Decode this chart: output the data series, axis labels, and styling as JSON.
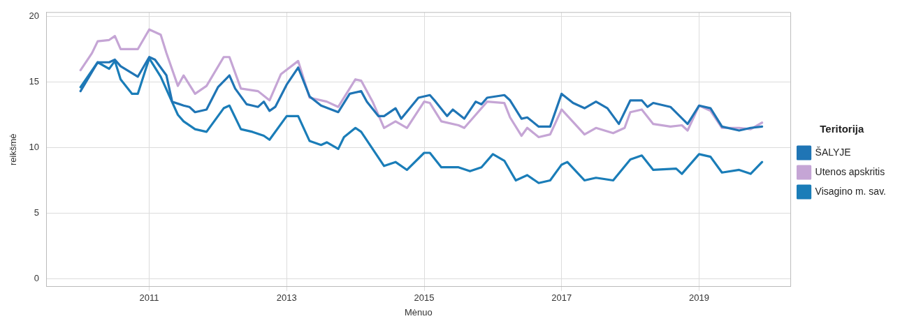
{
  "chart_data": {
    "type": "line",
    "xlabel": "Mėnuo",
    "ylabel": "reikšmė",
    "legend_title": "Teritorija",
    "legend": "right",
    "grid": true,
    "marker": "none",
    "line_style": "solid",
    "xlim": [
      "2009-07",
      "2020-05"
    ],
    "xticks": [
      "2011",
      "2013",
      "2015",
      "2017",
      "2019"
    ],
    "ylim": [
      -0.6,
      20.3
    ],
    "yticks": [
      0,
      5,
      10,
      15,
      20
    ],
    "series": [
      {
        "name": "ŠALYJE",
        "color": "#1f75b5",
        "x": [
          "2010-01",
          "2010-04",
          "2010-06",
          "2010-07",
          "2010-08",
          "2010-11",
          "2011-01",
          "2011-02",
          "2011-04",
          "2011-05",
          "2011-07",
          "2011-08",
          "2011-09",
          "2011-11",
          "2012-01",
          "2012-03",
          "2012-04",
          "2012-06",
          "2012-07",
          "2012-08",
          "2012-09",
          "2012-10",
          "2012-11",
          "2013-01",
          "2013-03",
          "2013-05",
          "2013-07",
          "2013-10",
          "2013-12",
          "2014-02",
          "2014-03",
          "2014-05",
          "2014-06",
          "2014-08",
          "2014-09",
          "2014-12",
          "2015-02",
          "2015-03",
          "2015-05",
          "2015-06",
          "2015-08",
          "2015-10",
          "2015-11",
          "2015-12",
          "2016-03",
          "2016-04",
          "2016-06",
          "2016-07",
          "2016-09",
          "2016-11",
          "2017-01",
          "2017-03",
          "2017-05",
          "2017-07",
          "2017-09",
          "2017-11",
          "2018-01",
          "2018-03",
          "2018-04",
          "2018-05",
          "2018-08",
          "2018-11",
          "2019-01",
          "2019-03",
          "2019-05",
          "2019-08",
          "2019-10",
          "2019-12"
        ],
        "values": [
          14.3,
          16.5,
          16.5,
          16.7,
          16.2,
          15.4,
          16.9,
          16.7,
          15.5,
          13.5,
          13.2,
          13.1,
          12.7,
          12.9,
          14.6,
          15.5,
          14.5,
          13.3,
          13.2,
          13.1,
          13.5,
          12.8,
          13.1,
          14.8,
          16.1,
          13.9,
          13.2,
          12.7,
          14.1,
          14.3,
          13.5,
          12.4,
          12.4,
          13.0,
          12.2,
          13.8,
          14.0,
          13.5,
          12.4,
          12.9,
          12.2,
          13.5,
          13.3,
          13.8,
          14.0,
          13.6,
          12.2,
          12.3,
          11.6,
          11.6,
          14.1,
          13.4,
          13.0,
          13.5,
          13.0,
          11.8,
          13.6,
          13.6,
          13.1,
          13.4,
          13.1,
          11.8,
          13.2,
          13.0,
          11.6,
          11.3,
          11.5,
          11.6
        ]
      },
      {
        "name": "Utenos apskritis",
        "color": "#c5a5d5",
        "x": [
          "2010-01",
          "2010-03",
          "2010-04",
          "2010-06",
          "2010-07",
          "2010-08",
          "2010-11",
          "2011-01",
          "2011-03",
          "2011-04",
          "2011-06",
          "2011-07",
          "2011-09",
          "2011-11",
          "2012-02",
          "2012-03",
          "2012-05",
          "2012-08",
          "2012-10",
          "2012-12",
          "2013-03",
          "2013-05",
          "2013-08",
          "2013-10",
          "2014-01",
          "2014-02",
          "2014-04",
          "2014-06",
          "2014-08",
          "2014-10",
          "2015-01",
          "2015-02",
          "2015-04",
          "2015-07",
          "2015-08",
          "2015-10",
          "2015-12",
          "2016-03",
          "2016-04",
          "2016-06",
          "2016-07",
          "2016-09",
          "2016-11",
          "2017-01",
          "2017-05",
          "2017-07",
          "2017-10",
          "2017-12",
          "2018-01",
          "2018-03",
          "2018-05",
          "2018-08",
          "2018-10",
          "2018-11",
          "2019-01",
          "2019-03",
          "2019-05",
          "2019-08",
          "2019-10",
          "2019-12"
        ],
        "values": [
          15.9,
          17.2,
          18.1,
          18.2,
          18.5,
          17.5,
          17.5,
          19.0,
          18.6,
          17.2,
          14.7,
          15.5,
          14.1,
          14.7,
          16.9,
          16.9,
          14.5,
          14.3,
          13.6,
          15.6,
          16.6,
          13.8,
          13.5,
          13.1,
          15.2,
          15.1,
          13.5,
          11.5,
          12.0,
          11.5,
          13.5,
          13.4,
          12.0,
          11.7,
          11.5,
          12.5,
          13.5,
          13.4,
          12.3,
          10.9,
          11.5,
          10.8,
          11.0,
          12.9,
          11.0,
          11.5,
          11.1,
          11.5,
          12.7,
          12.9,
          11.8,
          11.6,
          11.7,
          11.3,
          13.2,
          12.8,
          11.5,
          11.5,
          11.4,
          11.9
        ]
      },
      {
        "name": "Visagino m. sav.",
        "color": "#1a7db8",
        "x": [
          "2010-01",
          "2010-04",
          "2010-06",
          "2010-07",
          "2010-08",
          "2010-10",
          "2010-11",
          "2011-01",
          "2011-03",
          "2011-06",
          "2011-07",
          "2011-09",
          "2011-11",
          "2012-02",
          "2012-03",
          "2012-05",
          "2012-07",
          "2012-09",
          "2012-10",
          "2013-01",
          "2013-03",
          "2013-05",
          "2013-07",
          "2013-08",
          "2013-10",
          "2013-11",
          "2014-01",
          "2014-02",
          "2014-06",
          "2014-08",
          "2014-10",
          "2015-01",
          "2015-02",
          "2015-04",
          "2015-07",
          "2015-09",
          "2015-11",
          "2016-01",
          "2016-03",
          "2016-05",
          "2016-07",
          "2016-09",
          "2016-11",
          "2017-01",
          "2017-02",
          "2017-05",
          "2017-07",
          "2017-10",
          "2018-01",
          "2018-03",
          "2018-05",
          "2018-09",
          "2018-10",
          "2019-01",
          "2019-03",
          "2019-05",
          "2019-08",
          "2019-10",
          "2019-12"
        ],
        "values": [
          14.6,
          16.5,
          16.0,
          16.6,
          15.2,
          14.1,
          14.1,
          16.8,
          15.4,
          12.5,
          12.0,
          11.4,
          11.2,
          13.0,
          13.2,
          11.4,
          11.2,
          10.9,
          10.6,
          12.4,
          12.4,
          10.5,
          10.2,
          10.4,
          9.9,
          10.8,
          11.5,
          11.2,
          8.6,
          8.9,
          8.3,
          9.6,
          9.6,
          8.5,
          8.5,
          8.2,
          8.5,
          9.5,
          9.0,
          7.5,
          7.9,
          7.3,
          7.5,
          8.7,
          8.9,
          7.5,
          7.7,
          7.5,
          9.1,
          9.4,
          8.3,
          8.4,
          8.0,
          9.5,
          9.3,
          8.1,
          8.3,
          8.0,
          8.9
        ]
      }
    ]
  }
}
